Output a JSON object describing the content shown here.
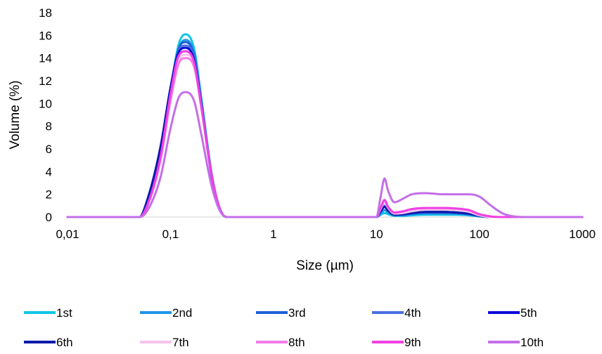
{
  "chart_data": {
    "type": "line",
    "title": "",
    "xlabel": "Size (µm)",
    "ylabel": "Volume (%)",
    "x_scale": "log",
    "xlim": [
      0.01,
      1000
    ],
    "ylim": [
      0,
      18
    ],
    "x_ticks": [
      "0,01",
      "0,1",
      "1",
      "10",
      "100",
      "1000"
    ],
    "y_ticks": [
      "0",
      "2",
      "4",
      "6",
      "8",
      "10",
      "12",
      "14",
      "16",
      "18"
    ],
    "grid": false,
    "legend_position": "bottom",
    "x": [
      0.01,
      0.03,
      0.05,
      0.06,
      0.08,
      0.1,
      0.12,
      0.14,
      0.17,
      0.2,
      0.25,
      0.3,
      0.35,
      0.5,
      1,
      5,
      10,
      11,
      12,
      13,
      15,
      18,
      22,
      30,
      45,
      60,
      80,
      100,
      130,
      170,
      220,
      300,
      500,
      1000
    ],
    "series": [
      {
        "name": "1st",
        "color": "#12c4e6",
        "values": [
          0,
          0,
          0,
          1.2,
          5.5,
          11.2,
          15.2,
          16.1,
          14.8,
          10.4,
          4.0,
          0.8,
          0,
          0,
          0,
          0,
          0,
          0.2,
          0.35,
          0.25,
          0.1,
          0.1,
          0.15,
          0.2,
          0.2,
          0.2,
          0.15,
          0.05,
          0,
          0,
          0,
          0,
          0,
          0
        ]
      },
      {
        "name": "2nd",
        "color": "#1e96e8",
        "values": [
          0,
          0,
          0,
          1.3,
          5.6,
          11.1,
          14.8,
          15.6,
          14.4,
          10.2,
          3.9,
          0.8,
          0,
          0,
          0,
          0,
          0,
          0.3,
          0.6,
          0.4,
          0.15,
          0.15,
          0.25,
          0.3,
          0.3,
          0.3,
          0.2,
          0.1,
          0,
          0,
          0,
          0,
          0,
          0
        ]
      },
      {
        "name": "3rd",
        "color": "#1f5fd6",
        "values": [
          0,
          0,
          0,
          1.5,
          6.0,
          11.3,
          14.8,
          15.4,
          14.2,
          10.0,
          3.8,
          0.8,
          0,
          0,
          0,
          0,
          0,
          0.5,
          0.9,
          0.6,
          0.2,
          0.2,
          0.3,
          0.4,
          0.4,
          0.35,
          0.25,
          0.1,
          0,
          0,
          0,
          0,
          0,
          0
        ]
      },
      {
        "name": "4th",
        "color": "#4a6fe0",
        "values": [
          0,
          0,
          0,
          1.4,
          5.9,
          11.2,
          14.6,
          15.1,
          14.0,
          9.9,
          3.8,
          0.8,
          0,
          0,
          0,
          0,
          0,
          0.5,
          1.0,
          0.6,
          0.2,
          0.25,
          0.35,
          0.45,
          0.45,
          0.4,
          0.3,
          0.1,
          0,
          0,
          0,
          0,
          0,
          0
        ]
      },
      {
        "name": "5th",
        "color": "#0a0ad8",
        "values": [
          0,
          0,
          0,
          1.6,
          6.2,
          11.4,
          14.5,
          14.9,
          13.8,
          9.8,
          3.7,
          0.8,
          0,
          0,
          0,
          0,
          0,
          0.5,
          0.9,
          0.55,
          0.2,
          0.25,
          0.35,
          0.45,
          0.45,
          0.4,
          0.3,
          0.1,
          0,
          0,
          0,
          0,
          0,
          0
        ]
      },
      {
        "name": "6th",
        "color": "#0a1aa8",
        "values": [
          0,
          0,
          0,
          1.6,
          6.1,
          11.2,
          14.2,
          14.6,
          13.6,
          9.7,
          3.7,
          0.8,
          0,
          0,
          0,
          0,
          0,
          0.5,
          0.9,
          0.55,
          0.2,
          0.25,
          0.35,
          0.45,
          0.45,
          0.4,
          0.3,
          0.1,
          0,
          0,
          0,
          0,
          0,
          0
        ]
      },
      {
        "name": "7th",
        "color": "#f7c2ec",
        "values": [
          0,
          0,
          0,
          1.1,
          5.2,
          10.5,
          13.8,
          14.3,
          13.4,
          9.6,
          3.8,
          0.8,
          0,
          0,
          0,
          0,
          0,
          0.7,
          1.3,
          0.8,
          0.3,
          0.35,
          0.5,
          0.65,
          0.65,
          0.6,
          0.45,
          0.15,
          0,
          0,
          0,
          0,
          0,
          0
        ]
      },
      {
        "name": "8th",
        "color": "#f27cea",
        "values": [
          0,
          0,
          0,
          1.0,
          5.0,
          10.2,
          13.5,
          14.0,
          13.2,
          9.5,
          3.8,
          0.8,
          0,
          0,
          0,
          0,
          0,
          0.8,
          1.5,
          0.9,
          0.4,
          0.5,
          0.7,
          0.8,
          0.8,
          0.75,
          0.6,
          0.25,
          0.05,
          0,
          0,
          0,
          0,
          0
        ]
      },
      {
        "name": "9th",
        "color": "#ef40e2",
        "values": [
          0,
          0,
          0,
          1.1,
          5.3,
          10.8,
          14.2,
          14.6,
          13.6,
          9.7,
          3.8,
          0.8,
          0,
          0,
          0,
          0,
          0,
          0.8,
          1.5,
          0.9,
          0.4,
          0.5,
          0.7,
          0.8,
          0.8,
          0.75,
          0.6,
          0.25,
          0.05,
          0,
          0,
          0,
          0,
          0
        ]
      },
      {
        "name": "10th",
        "color": "#c46ee8",
        "values": [
          0,
          0,
          0,
          0.6,
          3.5,
          7.8,
          10.5,
          11.0,
          10.2,
          7.2,
          2.8,
          0.6,
          0,
          0,
          0,
          0,
          0,
          1.8,
          3.4,
          2.3,
          1.3,
          1.6,
          2.0,
          2.1,
          2.0,
          2.0,
          2.0,
          1.8,
          1.0,
          0.3,
          0.05,
          0,
          0,
          0
        ]
      }
    ]
  }
}
